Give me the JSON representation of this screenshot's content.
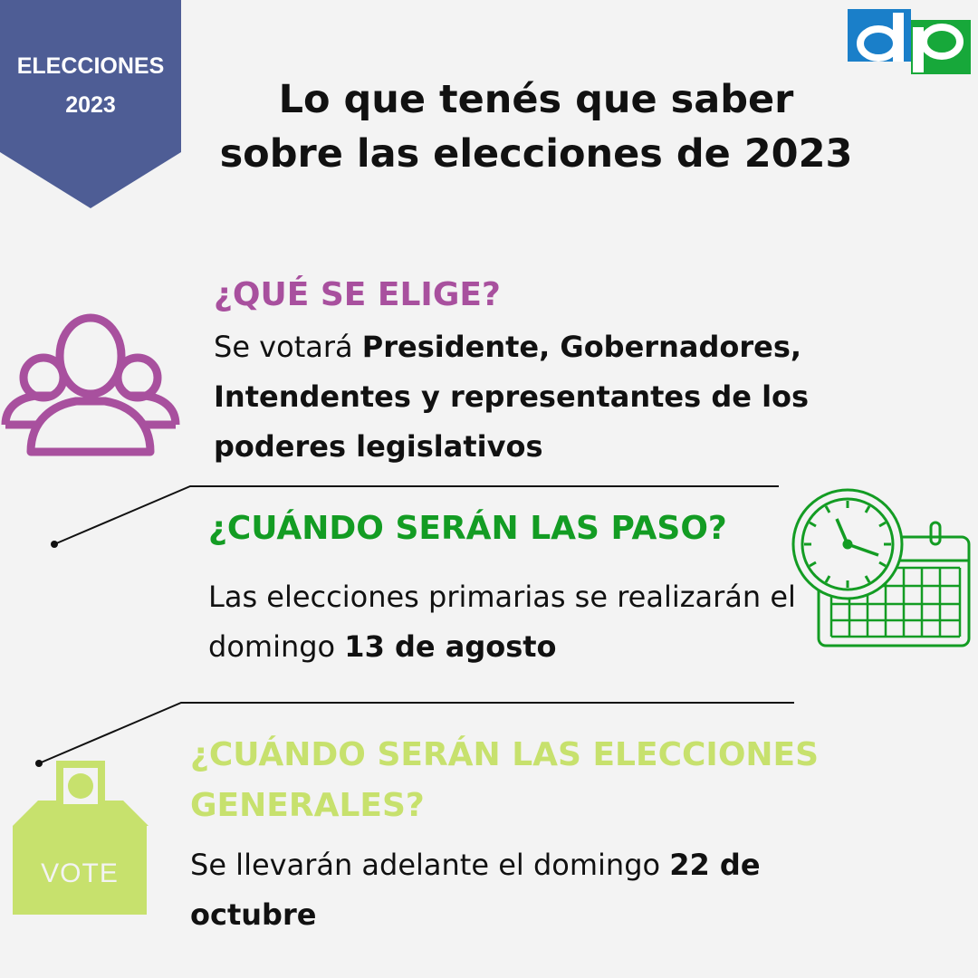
{
  "banner": {
    "line1": "ELECCIONES",
    "line2": "2023",
    "color": "#4e5d95"
  },
  "logo": {
    "name": "dp logo",
    "color_blue": "#1a7fc9",
    "color_green": "#17a83a"
  },
  "title": {
    "line1": "Lo que tenés que saber",
    "line2": "sobre las elecciones de 2023"
  },
  "sections": [
    {
      "icon": "people-group-icon",
      "heading": "¿QUÉ SE ELIGE?",
      "color": "#a8509e",
      "text_plain": "Se votará ",
      "text_bold": "Presidente, Gobernadores, Intendentes y representantes de los poderes legislativos"
    },
    {
      "icon": "clock-calendar-icon",
      "heading": "¿CUÁNDO SERÁN LAS PASO?",
      "color": "#139c23",
      "text_plain": "Las elecciones primarias se realizarán el domingo ",
      "text_bold": "13 de agosto"
    },
    {
      "icon": "ballot-box-icon",
      "icon_label": "VOTE",
      "heading": "¿CUÁNDO SERÁN LAS ELECCIONES GENERALES?",
      "color": "#c7e16d",
      "text_plain": "Se llevarán adelante el domingo ",
      "text_bold": "22 de octubre"
    }
  ]
}
